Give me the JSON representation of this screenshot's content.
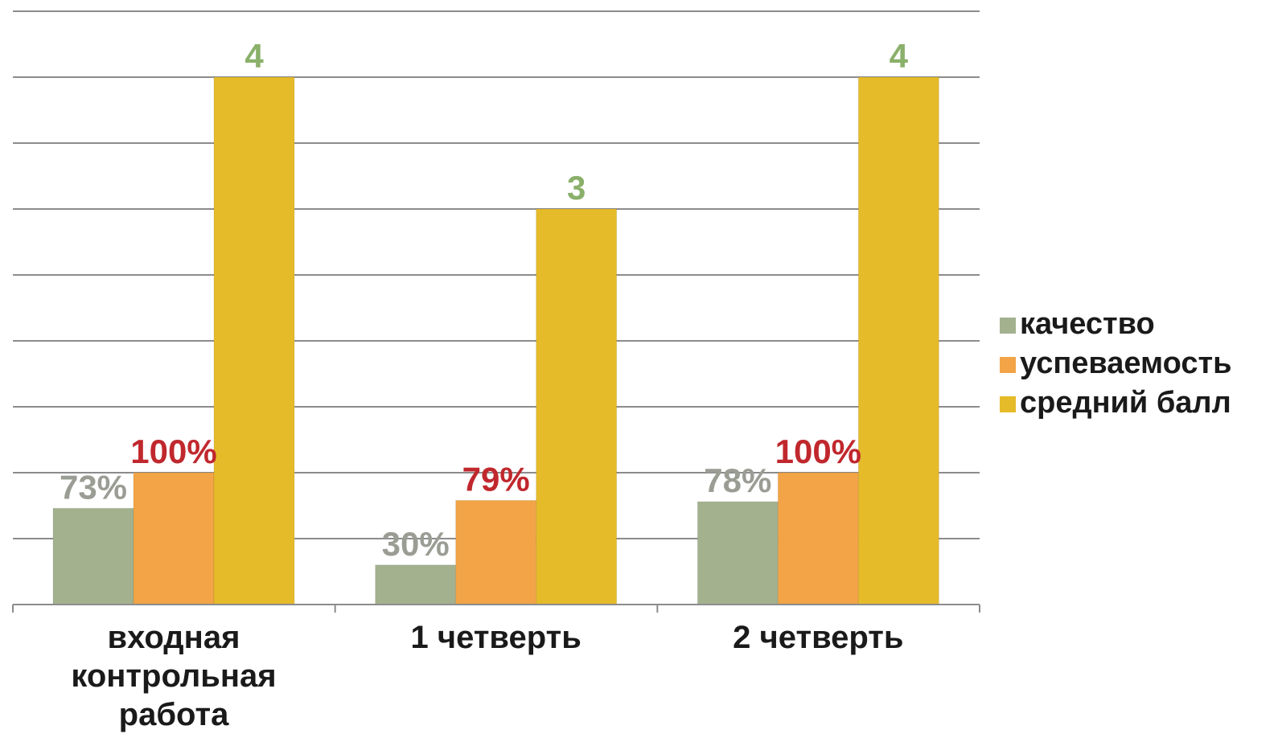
{
  "chart_data": {
    "type": "bar",
    "categories": [
      [
        "входная",
        "контрольная",
        "работа"
      ],
      [
        "1 четверть"
      ],
      [
        "2 четверть"
      ]
    ],
    "series": [
      {
        "name": "качество",
        "values": [
          0.73,
          0.3,
          0.78
        ],
        "labels": [
          "73%",
          "30%",
          "78%"
        ],
        "color": "#a3b18f",
        "label_color": "#9a9d94"
      },
      {
        "name": "успеваемость",
        "values": [
          1.0,
          0.79,
          1.0
        ],
        "labels": [
          "100%",
          "79%",
          "100%"
        ],
        "color": "#f2a446",
        "label_color": "#c0282d"
      },
      {
        "name": "средний балл",
        "values": [
          4,
          3,
          4
        ],
        "labels": [
          "4",
          "3",
          "4"
        ],
        "color": "#e6bb2a",
        "label_color": "#8ab06a"
      }
    ],
    "ylim": [
      0,
      4.5
    ],
    "grid": true,
    "legend_position": "right"
  }
}
